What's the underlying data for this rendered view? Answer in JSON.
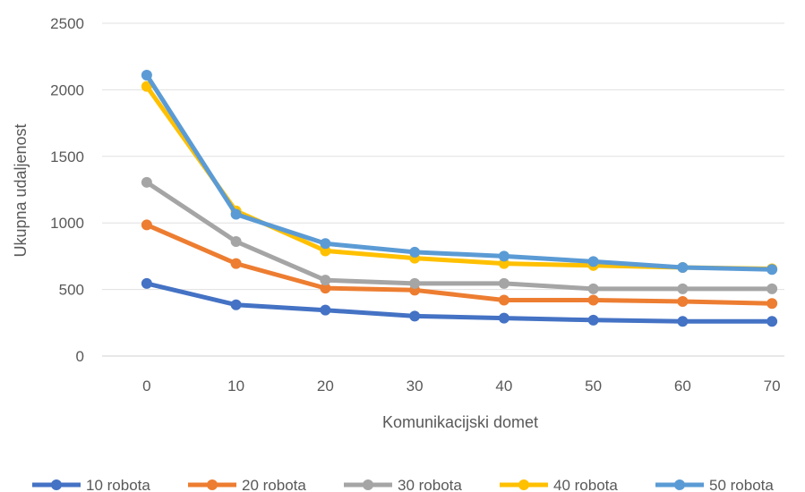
{
  "chart_data": {
    "type": "line",
    "title": "",
    "xlabel": "Komunikacijski domet",
    "ylabel": "Ukupna udaljenost",
    "x": [
      0,
      10,
      20,
      30,
      40,
      50,
      60,
      70
    ],
    "ylim": [
      0,
      2500
    ],
    "yticks": [
      0,
      500,
      1000,
      1500,
      2000,
      2500
    ],
    "grid": true,
    "legend": "bottom",
    "series": [
      {
        "name": "10 robota",
        "color": "#4472C4",
        "values": [
          545,
          385,
          345,
          300,
          285,
          270,
          260,
          260
        ]
      },
      {
        "name": "20 robota",
        "color": "#ED7D31",
        "values": [
          985,
          695,
          510,
          495,
          420,
          420,
          410,
          395
        ]
      },
      {
        "name": "30 robota",
        "color": "#A5A5A5",
        "values": [
          1305,
          860,
          570,
          545,
          545,
          505,
          505,
          505
        ]
      },
      {
        "name": "40 robota",
        "color": "#FFC000",
        "values": [
          2025,
          1090,
          790,
          735,
          695,
          680,
          665,
          655
        ]
      },
      {
        "name": "50 robota",
        "color": "#5B9BD5",
        "values": [
          2110,
          1065,
          845,
          780,
          750,
          710,
          665,
          650
        ]
      }
    ]
  }
}
